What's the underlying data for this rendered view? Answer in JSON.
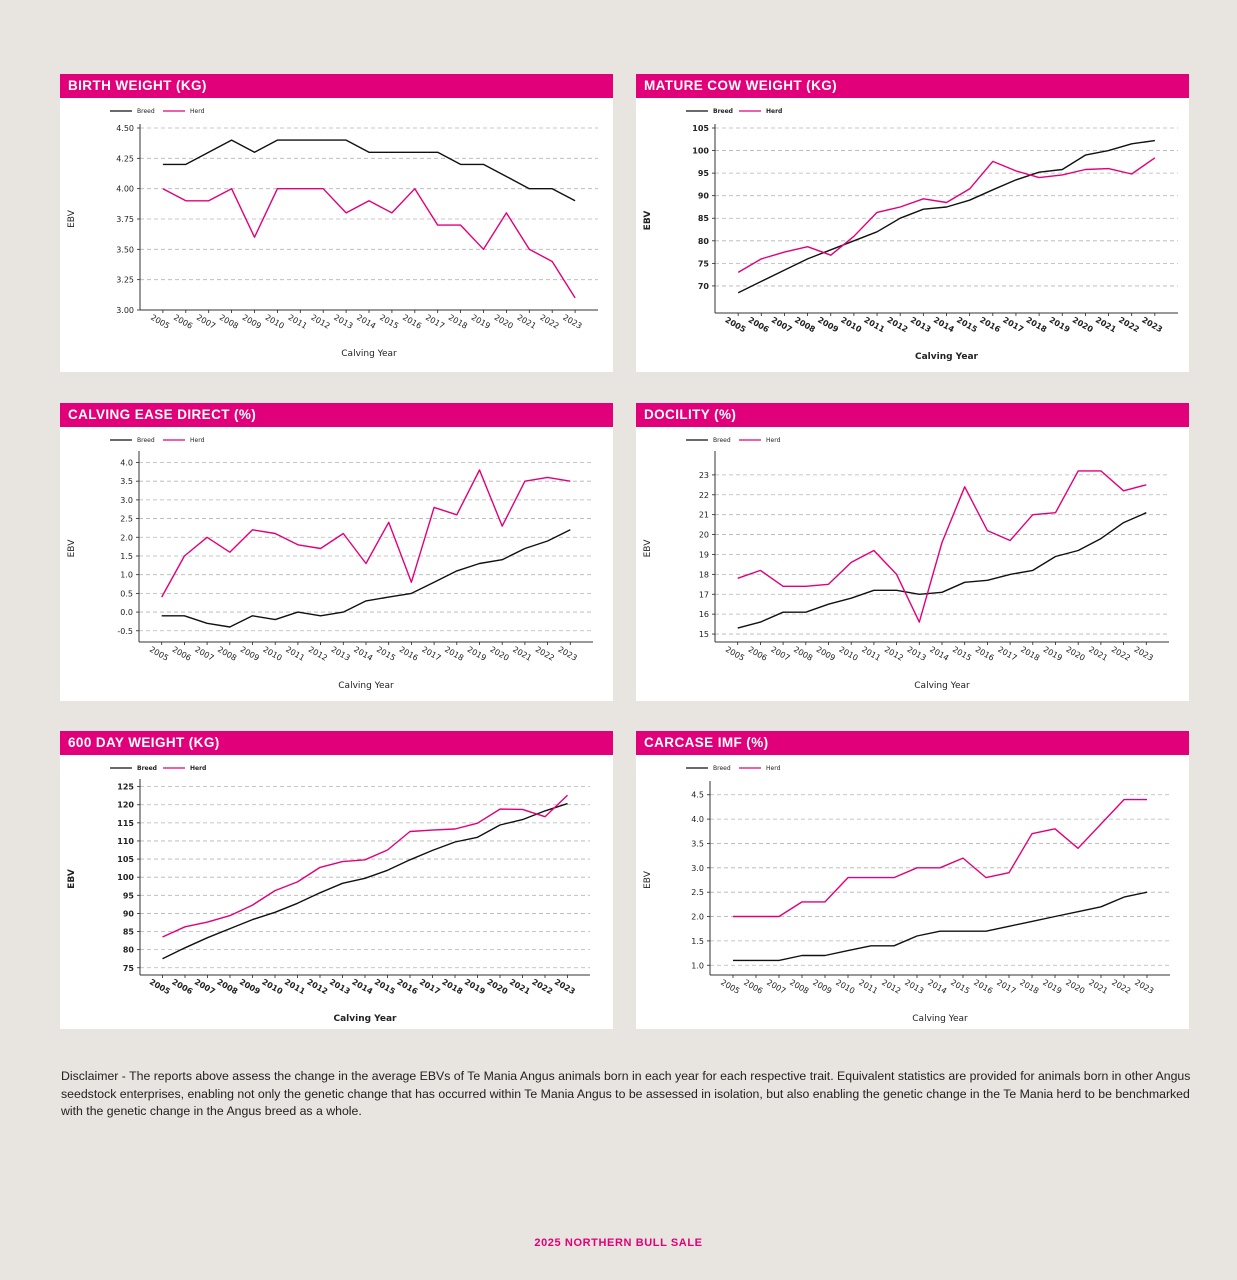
{
  "colors": {
    "breed": "#111111",
    "herd": "#e2007a",
    "grid": "#b5b5b5",
    "header": "#e2007a"
  },
  "legend": {
    "breed": "Breed",
    "herd": "Herd"
  },
  "chart_data": [
    {
      "type": "line",
      "title": "BIRTH WEIGHT (KG)",
      "xlabel": "Calving Year",
      "ylabel": "EBV",
      "categories": [
        "2005",
        "2006",
        "2007",
        "2008",
        "2009",
        "2010",
        "2011",
        "2012",
        "2013",
        "2014",
        "2015",
        "2016",
        "2017",
        "2018",
        "2019",
        "2020",
        "2021",
        "2022",
        "2023"
      ],
      "ylim": [
        3.0,
        4.5
      ],
      "yticks": [
        "4.50",
        "4.25",
        "4.00",
        "3.75",
        "3.50",
        "3.25",
        "3.00"
      ],
      "series": [
        {
          "name": "Breed",
          "values": [
            4.2,
            4.2,
            4.3,
            4.4,
            4.3,
            4.4,
            4.4,
            4.4,
            4.4,
            4.3,
            4.3,
            4.3,
            4.3,
            4.2,
            4.2,
            4.1,
            4.0,
            4.0,
            3.9
          ]
        },
        {
          "name": "Herd",
          "values": [
            4.0,
            3.9,
            3.9,
            4.0,
            3.6,
            4.0,
            4.0,
            4.0,
            3.8,
            3.9,
            3.8,
            4.0,
            3.7,
            3.7,
            3.5,
            3.8,
            3.5,
            3.4,
            3.1
          ]
        }
      ]
    },
    {
      "type": "line",
      "title": "MATURE COW WEIGHT (KG)",
      "xlabel": "Calving Year",
      "ylabel": "EBV",
      "categories": [
        "2005",
        "2006",
        "2007",
        "2008",
        "2009",
        "2010",
        "2011",
        "2012",
        "2013",
        "2014",
        "2015",
        "2016",
        "2017",
        "2018",
        "2019",
        "2020",
        "2021",
        "2022",
        "2023"
      ],
      "ylim": [
        64,
        105
      ],
      "yticks": [
        "105",
        "100",
        "95",
        "90",
        "85",
        "80",
        "75",
        "70"
      ],
      "series": [
        {
          "name": "Breed",
          "values": [
            68.5,
            71,
            73.5,
            76,
            78,
            80,
            82,
            85,
            87,
            87.5,
            89,
            91.3,
            93.5,
            95.2,
            95.8,
            99,
            100,
            101.5,
            102.2
          ]
        },
        {
          "name": "Herd",
          "values": [
            73,
            76,
            77.5,
            78.7,
            76.8,
            81,
            86.3,
            87.5,
            89.3,
            88.5,
            91.5,
            97.6,
            95.5,
            94,
            94.6,
            95.8,
            96,
            94.8,
            98.4
          ]
        }
      ]
    },
    {
      "type": "line",
      "title": "CALVING EASE DIRECT (%)",
      "xlabel": "Calving Year",
      "ylabel": "EBV",
      "categories": [
        "2005",
        "2006",
        "2007",
        "2008",
        "2009",
        "2010",
        "2011",
        "2012",
        "2013",
        "2014",
        "2015",
        "2016",
        "2017",
        "2018",
        "2019",
        "2020",
        "2021",
        "2022",
        "2023"
      ],
      "ylim": [
        -0.8,
        4.2
      ],
      "yticks": [
        "4.0",
        "3.5",
        "3.0",
        "2.5",
        "2.0",
        "1.5",
        "1.0",
        "0.5",
        "0.0",
        "-0.5"
      ],
      "series": [
        {
          "name": "Breed",
          "values": [
            -0.1,
            -0.1,
            -0.3,
            -0.4,
            -0.1,
            -0.2,
            0.0,
            -0.1,
            0.0,
            0.3,
            0.4,
            0.5,
            0.8,
            1.1,
            1.3,
            1.4,
            1.7,
            1.9,
            2.2
          ]
        },
        {
          "name": "Herd",
          "values": [
            0.4,
            1.5,
            2.0,
            1.6,
            2.2,
            2.1,
            1.8,
            1.7,
            2.1,
            1.3,
            2.4,
            0.8,
            2.8,
            2.6,
            3.8,
            2.3,
            3.5,
            3.6,
            3.5
          ]
        }
      ]
    },
    {
      "type": "line",
      "title": "DOCILITY (%)",
      "xlabel": "Calving Year",
      "ylabel": "EBV",
      "categories": [
        "2005",
        "2006",
        "2007",
        "2008",
        "2009",
        "2010",
        "2011",
        "2012",
        "2013",
        "2014",
        "2015",
        "2016",
        "2017",
        "2018",
        "2019",
        "2020",
        "2021",
        "2022",
        "2023"
      ],
      "ylim": [
        14.6,
        24
      ],
      "yticks": [
        "23",
        "22",
        "21",
        "20",
        "19",
        "18",
        "17",
        "16",
        "15"
      ],
      "series": [
        {
          "name": "Breed",
          "values": [
            15.3,
            15.6,
            16.1,
            16.1,
            16.5,
            16.8,
            17.2,
            17.2,
            17.0,
            17.1,
            17.6,
            17.7,
            18.0,
            18.2,
            18.9,
            19.2,
            19.8,
            20.6,
            21.1
          ]
        },
        {
          "name": "Herd",
          "values": [
            17.8,
            18.2,
            17.4,
            17.4,
            17.5,
            18.6,
            19.2,
            18.0,
            15.6,
            19.6,
            22.4,
            20.2,
            19.7,
            21.0,
            21.1,
            23.2,
            23.2,
            22.2,
            22.5
          ]
        }
      ]
    },
    {
      "type": "line",
      "title": "600 DAY WEIGHT (KG)",
      "xlabel": "Calving Year",
      "ylabel": "EBV",
      "categories": [
        "2005",
        "2006",
        "2007",
        "2008",
        "2009",
        "2010",
        "2011",
        "2012",
        "2013",
        "2014",
        "2015",
        "2016",
        "2017",
        "2018",
        "2019",
        "2020",
        "2021",
        "2022",
        "2023"
      ],
      "ylim": [
        73,
        126
      ],
      "yticks": [
        "125",
        "120",
        "115",
        "110",
        "105",
        "100",
        "95",
        "90",
        "85",
        "80",
        "75"
      ],
      "series": [
        {
          "name": "Breed",
          "values": [
            77.5,
            80.5,
            83.3,
            85.8,
            88.3,
            90.3,
            92.8,
            95.7,
            98.3,
            99.7,
            101.9,
            104.8,
            107.4,
            109.7,
            111,
            114.4,
            115.9,
            118.3,
            120.3
          ]
        },
        {
          "name": "Herd",
          "values": [
            83.5,
            86.3,
            87.6,
            89.4,
            92.3,
            96.3,
            98.7,
            102.7,
            104.3,
            104.8,
            107.5,
            112.6,
            113,
            113.3,
            114.9,
            118.8,
            118.7,
            116.7,
            122.6
          ]
        }
      ]
    },
    {
      "type": "line",
      "title": "CARCASE IMF (%)",
      "xlabel": "Calving Year",
      "ylabel": "EBV",
      "categories": [
        "2005",
        "2006",
        "2007",
        "2008",
        "2009",
        "2010",
        "2011",
        "2012",
        "2013",
        "2014",
        "2015",
        "2016",
        "2017",
        "2018",
        "2019",
        "2020",
        "2021",
        "2022",
        "2023"
      ],
      "ylim": [
        0.8,
        4.7
      ],
      "yticks": [
        "4.5",
        "4.0",
        "3.5",
        "3.0",
        "2.5",
        "2.0",
        "1.5",
        "1.0"
      ],
      "series": [
        {
          "name": "Breed",
          "values": [
            1.1,
            1.1,
            1.1,
            1.2,
            1.2,
            1.3,
            1.4,
            1.4,
            1.6,
            1.7,
            1.7,
            1.7,
            1.8,
            1.9,
            2.0,
            2.1,
            2.2,
            2.4,
            2.5
          ]
        },
        {
          "name": "Herd",
          "values": [
            2.0,
            2.0,
            2.0,
            2.3,
            2.3,
            2.8,
            2.8,
            2.8,
            3.0,
            3.0,
            3.2,
            2.8,
            2.9,
            3.7,
            3.8,
            3.4,
            3.9,
            4.4,
            4.4
          ]
        }
      ]
    }
  ],
  "disclaimer": "Disclaimer -  The reports above assess the change in the average EBVs of Te Mania Angus animals born in each year for each respective trait. Equivalent statistics are provided for animals born in other Angus seedstock enterprises, enabling not only the genetic change that has occurred within Te Mania Angus to be assessed in isolation, but also enabling the genetic change in the Te Mania herd to be benchmarked with the genetic change in the Angus breed as a whole.",
  "footer": "2025 NORTHERN BULL SALE"
}
